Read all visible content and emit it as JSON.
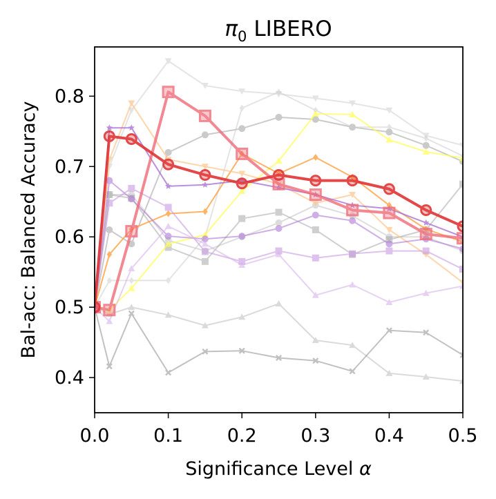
{
  "chart_data": {
    "type": "line",
    "title_prefix": "π",
    "title_subscript": "0",
    "title_suffix": "LIBERO",
    "xlabel_prefix": "Significance Level ",
    "xlabel_symbol": "α",
    "ylabel": "Bal-acc: Balanced Accuracy",
    "xlim": [
      0.0,
      0.5
    ],
    "ylim": [
      0.35,
      0.87
    ],
    "xticks": [
      0.0,
      0.1,
      0.2,
      0.3,
      0.4,
      0.5
    ],
    "xtick_labels": [
      "0.0",
      "0.1",
      "0.2",
      "0.3",
      "0.4",
      "0.5"
    ],
    "yticks": [
      0.4,
      0.5,
      0.6,
      0.7,
      0.8
    ],
    "ytick_labels": [
      "0.4",
      "0.5",
      "0.6",
      "0.7",
      "0.8"
    ],
    "grid": false,
    "legend": "none",
    "x": [
      0.0,
      0.02,
      0.05,
      0.1,
      0.15,
      0.2,
      0.25,
      0.3,
      0.35,
      0.4,
      0.45,
      0.5
    ],
    "series": [
      {
        "name": "gray-circle-dark",
        "color": "#a0a0a0",
        "marker": "circle",
        "opacity": 0.55,
        "width": 2,
        "values": [
          0.5,
          0.61,
          0.59,
          0.72,
          0.745,
          0.754,
          0.77,
          0.767,
          0.756,
          0.749,
          0.73,
          0.707
        ]
      },
      {
        "name": "gray-circle-light",
        "color": "#bdbdbd",
        "marker": "circle",
        "opacity": 0.5,
        "width": 2,
        "values": [
          0.5,
          0.66,
          0.66,
          0.595,
          0.58,
          0.6,
          0.62,
          0.645,
          0.63,
          0.6,
          0.6,
          0.58
        ]
      },
      {
        "name": "gray-triangle-down",
        "color": "#cfcfcf",
        "marker": "triangle-down",
        "opacity": 0.55,
        "width": 2,
        "values": [
          0.5,
          0.7,
          0.78,
          0.85,
          0.815,
          0.807,
          0.803,
          0.797,
          0.79,
          0.78,
          0.744,
          0.73
        ]
      },
      {
        "name": "gray-square",
        "color": "#a8a8a8",
        "marker": "square",
        "opacity": 0.55,
        "width": 2,
        "values": [
          0.5,
          0.66,
          0.655,
          0.585,
          0.565,
          0.626,
          0.635,
          0.61,
          0.575,
          0.596,
          0.61,
          0.675
        ]
      },
      {
        "name": "gray-triangle-up",
        "color": "#bdbdbd",
        "marker": "triangle-up",
        "opacity": 0.55,
        "width": 2,
        "values": [
          0.5,
          0.49,
          0.5,
          0.489,
          0.474,
          0.486,
          0.505,
          0.453,
          0.446,
          0.406,
          0.401,
          0.395
        ]
      },
      {
        "name": "gray-x",
        "color": "#8f8f8f",
        "marker": "x",
        "opacity": 0.55,
        "width": 2,
        "values": [
          0.5,
          0.416,
          0.491,
          0.407,
          0.437,
          0.438,
          0.428,
          0.424,
          0.409,
          0.467,
          0.464,
          0.432
        ]
      },
      {
        "name": "gray-diamond",
        "color": "#cfcfcf",
        "marker": "diamond",
        "opacity": 0.55,
        "width": 2,
        "values": [
          0.5,
          0.538,
          0.538,
          0.538,
          0.6,
          0.783,
          0.806,
          0.78,
          0.756,
          0.756,
          0.74,
          0.715
        ]
      },
      {
        "name": "yellow-triangle-up",
        "color": "#ffff4d",
        "marker": "triangle-up",
        "opacity": 0.7,
        "width": 2,
        "values": [
          0.5,
          0.496,
          0.527,
          0.59,
          0.603,
          0.665,
          0.708,
          0.775,
          0.774,
          0.738,
          0.721,
          0.712
        ]
      },
      {
        "name": "orange-diamond",
        "color": "#ff9a33",
        "marker": "diamond",
        "opacity": 0.75,
        "width": 2,
        "values": [
          0.5,
          0.575,
          0.611,
          0.633,
          0.636,
          0.718,
          0.69,
          0.713,
          0.685,
          0.645,
          0.611,
          0.593
        ]
      },
      {
        "name": "peach-triangle-down",
        "color": "#ffc890",
        "marker": "triangle-down",
        "opacity": 0.75,
        "width": 2,
        "values": [
          0.5,
          0.71,
          0.79,
          0.71,
          0.7,
          0.69,
          0.675,
          0.648,
          0.66,
          0.61,
          0.575,
          0.535
        ]
      },
      {
        "name": "purple-star",
        "color": "#a36ad1",
        "marker": "star",
        "opacity": 0.75,
        "width": 2,
        "values": [
          0.5,
          0.755,
          0.755,
          0.672,
          0.674,
          0.68,
          0.67,
          0.66,
          0.645,
          0.64,
          0.62,
          0.6
        ]
      },
      {
        "name": "purple-circle",
        "color": "#b07ad8",
        "marker": "circle",
        "opacity": 0.6,
        "width": 2,
        "values": [
          0.5,
          0.68,
          0.654,
          0.601,
          0.597,
          0.601,
          0.612,
          0.631,
          0.623,
          0.59,
          0.597,
          0.583
        ]
      },
      {
        "name": "lilac-square",
        "color": "#c79be3",
        "marker": "square",
        "opacity": 0.6,
        "width": 2,
        "values": [
          0.5,
          0.648,
          0.669,
          0.642,
          0.579,
          0.565,
          0.58,
          0.57,
          0.576,
          0.58,
          0.58,
          0.554
        ]
      },
      {
        "name": "lavender-triangle-up",
        "color": "#d8b3ec",
        "marker": "triangle-up",
        "opacity": 0.6,
        "width": 2,
        "values": [
          0.5,
          0.48,
          0.555,
          0.615,
          0.59,
          0.56,
          0.575,
          0.517,
          0.532,
          0.507,
          0.52,
          0.53
        ]
      },
      {
        "name": "pink-square-big",
        "color": "#ef6b78",
        "marker": "square",
        "opacity": 0.8,
        "width": 4,
        "size": 15,
        "values": [
          0.5,
          0.496,
          0.608,
          0.806,
          0.772,
          0.718,
          0.675,
          0.66,
          0.638,
          0.634,
          0.604,
          0.598
        ]
      },
      {
        "name": "red-circle-big",
        "color": "#e03535",
        "marker": "circle",
        "opacity": 0.9,
        "width": 4,
        "size": 14,
        "values": [
          0.5,
          0.743,
          0.739,
          0.703,
          0.688,
          0.676,
          0.688,
          0.68,
          0.68,
          0.668,
          0.638,
          0.615
        ]
      }
    ]
  }
}
